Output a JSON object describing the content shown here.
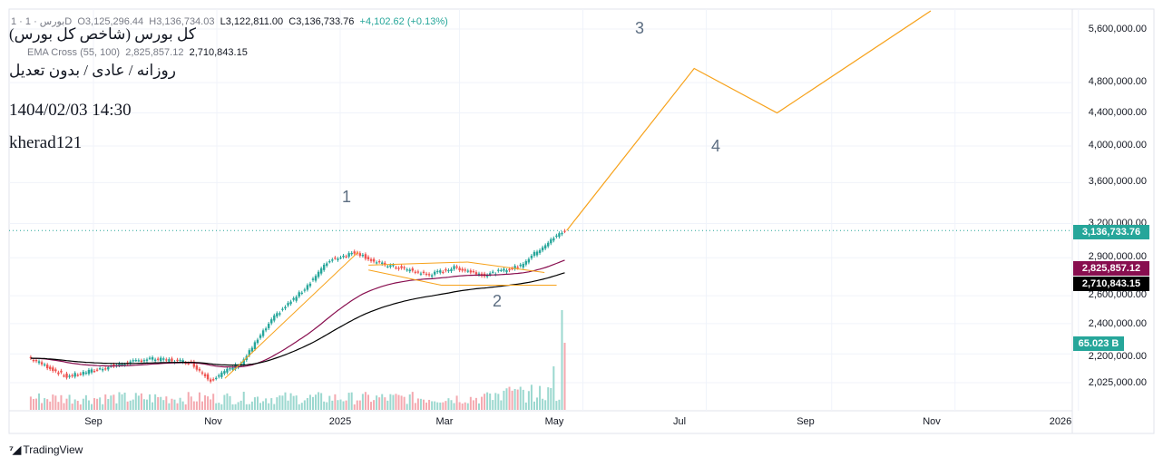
{
  "legend": {
    "symbol": "1 · بورس · 1D",
    "open": "O3,125,296.44",
    "high": "H3,136,734.03",
    "low": "L3,122,811.00",
    "close": "C3,136,733.76",
    "change": "+4,102.62 (+0.13%)",
    "ema_label": "EMA Cross (55, 100)",
    "ema_value_1": "2,825,857.12",
    "ema_value_2": "2,710,843.15"
  },
  "overlay": {
    "title": "(کل بورس (شاخص کل بورس",
    "subtitle": "روزانه / عادی / بدون تعدیل",
    "datetime": "1404/02/03 14:30",
    "author": "kherad121"
  },
  "price_axis": {
    "labels": [
      "5,600,000.00",
      "4,800,000.00",
      "4,400,000.00",
      "4,000,000.00",
      "3,600,000.00",
      "3,200,000.00",
      "2,900,000.00",
      "2,600,000.00",
      "2,400,000.00",
      "2,200,000.00",
      "2,025,000.00"
    ],
    "badges": [
      {
        "text": "3,136,733.76",
        "color": "#26a69a"
      },
      {
        "text": "2,825,857.12",
        "color": "#880e4f"
      },
      {
        "text": "2,710,843.15",
        "color": "#000000"
      },
      {
        "text": "65.023 B",
        "color": "#26a69a"
      }
    ]
  },
  "time_axis": [
    "Sep",
    "Nov",
    "2025",
    "Mar",
    "May",
    "Jul",
    "Sep",
    "Nov",
    "2026"
  ],
  "waves": [
    "1",
    "2",
    "3",
    "4"
  ],
  "branding": "TradingView",
  "chart_data": {
    "type": "candlestick",
    "title": "(کل بورس (شاخص کل بورس",
    "x_axis": [
      "Sep",
      "Nov",
      "2025",
      "Mar",
      "May",
      "Jul",
      "Sep",
      "Nov",
      "2026"
    ],
    "y_scale": "log",
    "y_ticks": [
      2025000,
      2200000,
      2400000,
      2600000,
      2900000,
      3200000,
      3600000,
      4000000,
      4400000,
      4800000,
      5600000
    ],
    "last_close": 3136733.76,
    "ema_55": 2825857.12,
    "ema_100": 2710843.15,
    "volume_last": "65.023 B",
    "price_path_approx": [
      {
        "t": "2024-08-01",
        "close": 2180000
      },
      {
        "t": "2024-08-20",
        "close": 2060000
      },
      {
        "t": "2024-09-10",
        "close": 2120000
      },
      {
        "t": "2024-09-30",
        "close": 2170000
      },
      {
        "t": "2024-10-20",
        "close": 2150000
      },
      {
        "t": "2024-10-30",
        "close": 2040000
      },
      {
        "t": "2024-11-15",
        "close": 2150000
      },
      {
        "t": "2024-12-01",
        "close": 2450000
      },
      {
        "t": "2024-12-15",
        "close": 2640000
      },
      {
        "t": "2024-12-28",
        "close": 2880000
      },
      {
        "t": "2025-01-10",
        "close": 2950000
      },
      {
        "t": "2025-01-20",
        "close": 2860000
      },
      {
        "t": "2025-02-05",
        "close": 2800000
      },
      {
        "t": "2025-02-15",
        "close": 2760000
      },
      {
        "t": "2025-02-28",
        "close": 2820000
      },
      {
        "t": "2025-03-15",
        "close": 2760000
      },
      {
        "t": "2025-04-01",
        "close": 2830000
      },
      {
        "t": "2025-04-10",
        "close": 2960000
      },
      {
        "t": "2025-04-23",
        "close": 3136733.76
      }
    ],
    "projection": [
      {
        "label": "",
        "t": "2025-04-23",
        "price": 3136733.76
      },
      {
        "label": "3",
        "t": "2025-06-25",
        "price": 5000000
      },
      {
        "label": "4",
        "t": "2025-08-05",
        "price": 4400000
      },
      {
        "label": "",
        "t": "2025-10-20",
        "price": 5900000
      }
    ],
    "grid": true,
    "legend_position": "top-left"
  }
}
